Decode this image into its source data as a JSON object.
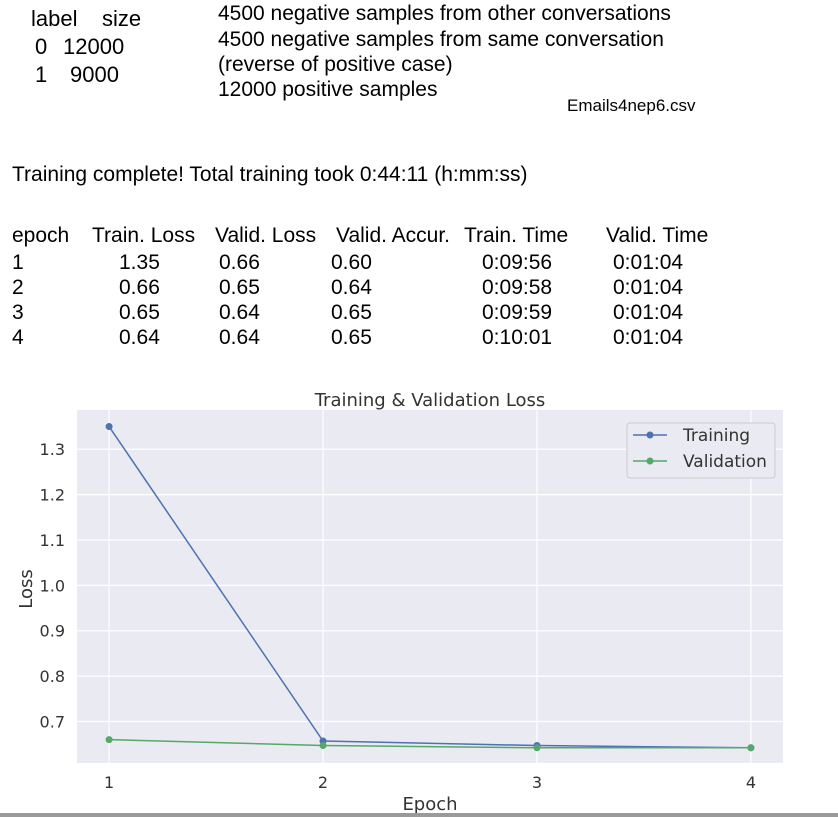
{
  "size_table": {
    "headers": [
      "label",
      "size"
    ],
    "rows": [
      [
        "0",
        "12000"
      ],
      [
        "1",
        "9000"
      ]
    ]
  },
  "notes": [
    "4500 negative samples from other conversations",
    "4500 negative samples from same conversation",
    "(reverse of positive case)",
    "12000 positive samples"
  ],
  "filename": "Emails4nep6.csv",
  "training_message": "Training complete! Total training took 0:44:11 (h:mm:ss)",
  "stats_table": {
    "headers": [
      "epoch",
      "Train. Loss",
      "Valid. Loss",
      "Valid. Accur.",
      "Train. Time",
      "Valid. Time"
    ],
    "rows": [
      [
        "1",
        "1.35",
        "0.66",
        "0.60",
        "0:09:56",
        "0:01:04"
      ],
      [
        "2",
        "0.66",
        "0.65",
        "0.64",
        "0:09:58",
        "0:01:04"
      ],
      [
        "3",
        "0.65",
        "0.64",
        "0.65",
        "0:09:59",
        "0:01:04"
      ],
      [
        "4",
        "0.64",
        "0.64",
        "0.65",
        "0:10:01",
        "0:01:04"
      ]
    ]
  },
  "chart_data": {
    "type": "line",
    "title": "Training & Validation Loss",
    "xlabel": "Epoch",
    "ylabel": "Loss",
    "x": [
      1,
      2,
      3,
      4
    ],
    "xticks": [
      "1",
      "2",
      "3",
      "4"
    ],
    "yticks": [
      "0.7",
      "0.8",
      "0.9",
      "1.0",
      "1.1",
      "1.2",
      "1.3"
    ],
    "xlim": [
      0.85,
      4.15
    ],
    "ylim": [
      0.6085,
      1.3865
    ],
    "grid": true,
    "legend_position": "top-right",
    "series": [
      {
        "name": "Training",
        "color": "#4c72b0",
        "values": [
          1.35,
          0.657,
          0.647,
          0.642
        ]
      },
      {
        "name": "Validation",
        "color": "#55a868",
        "values": [
          0.66,
          0.647,
          0.642,
          0.642
        ]
      }
    ],
    "background_color": "#eaeaf2"
  }
}
